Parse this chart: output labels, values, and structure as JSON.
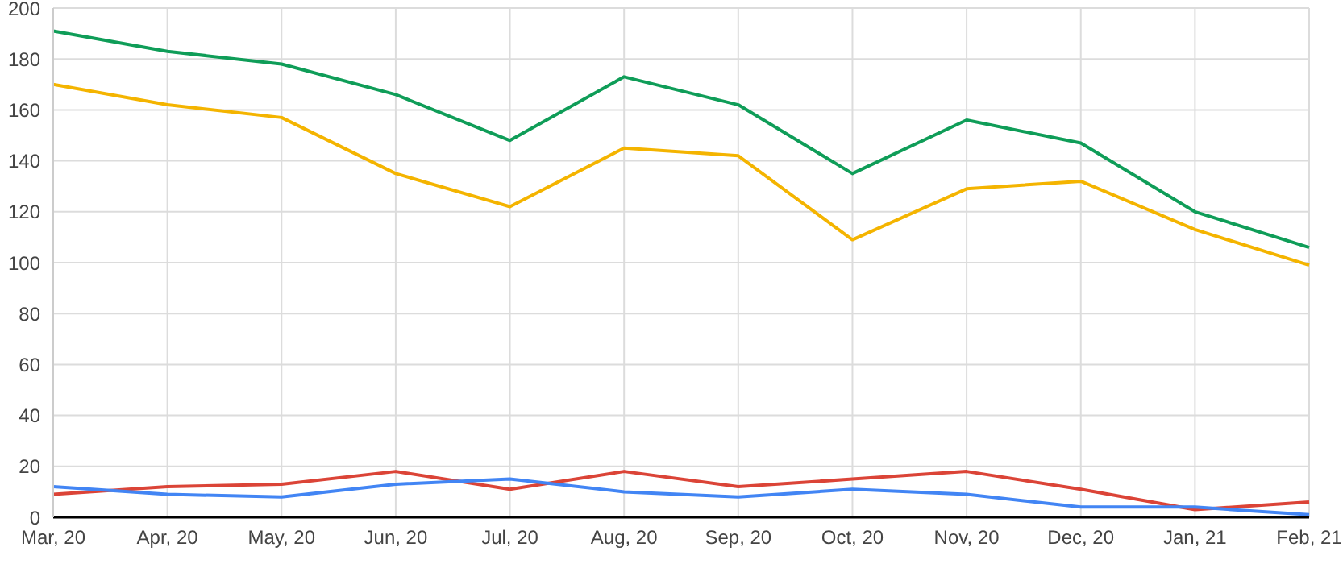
{
  "chart_data": {
    "type": "line",
    "categories": [
      "Mar, 20",
      "Apr, 20",
      "May, 20",
      "Jun, 20",
      "Jul, 20",
      "Aug, 20",
      "Sep, 20",
      "Oct, 20",
      "Nov, 20",
      "Dec, 20",
      "Jan, 21",
      "Feb, 21"
    ],
    "series": [
      {
        "color": "#0f9d58",
        "values": [
          191,
          183,
          178,
          166,
          148,
          173,
          162,
          135,
          156,
          147,
          120,
          106
        ]
      },
      {
        "color": "#f4b400",
        "values": [
          170,
          162,
          157,
          135,
          122,
          145,
          142,
          109,
          129,
          132,
          113,
          99
        ]
      },
      {
        "color": "#db4437",
        "values": [
          9,
          12,
          13,
          18,
          11,
          18,
          12,
          15,
          18,
          11,
          3,
          6
        ]
      },
      {
        "color": "#4285f4",
        "values": [
          12,
          9,
          8,
          13,
          15,
          10,
          8,
          11,
          9,
          4,
          4,
          1
        ]
      }
    ],
    "ylim": [
      0,
      200
    ],
    "yticks": [
      0,
      20,
      40,
      60,
      80,
      100,
      120,
      140,
      160,
      180,
      200
    ],
    "grid": true,
    "legend": false,
    "marker": "none",
    "line_style": "solid"
  }
}
